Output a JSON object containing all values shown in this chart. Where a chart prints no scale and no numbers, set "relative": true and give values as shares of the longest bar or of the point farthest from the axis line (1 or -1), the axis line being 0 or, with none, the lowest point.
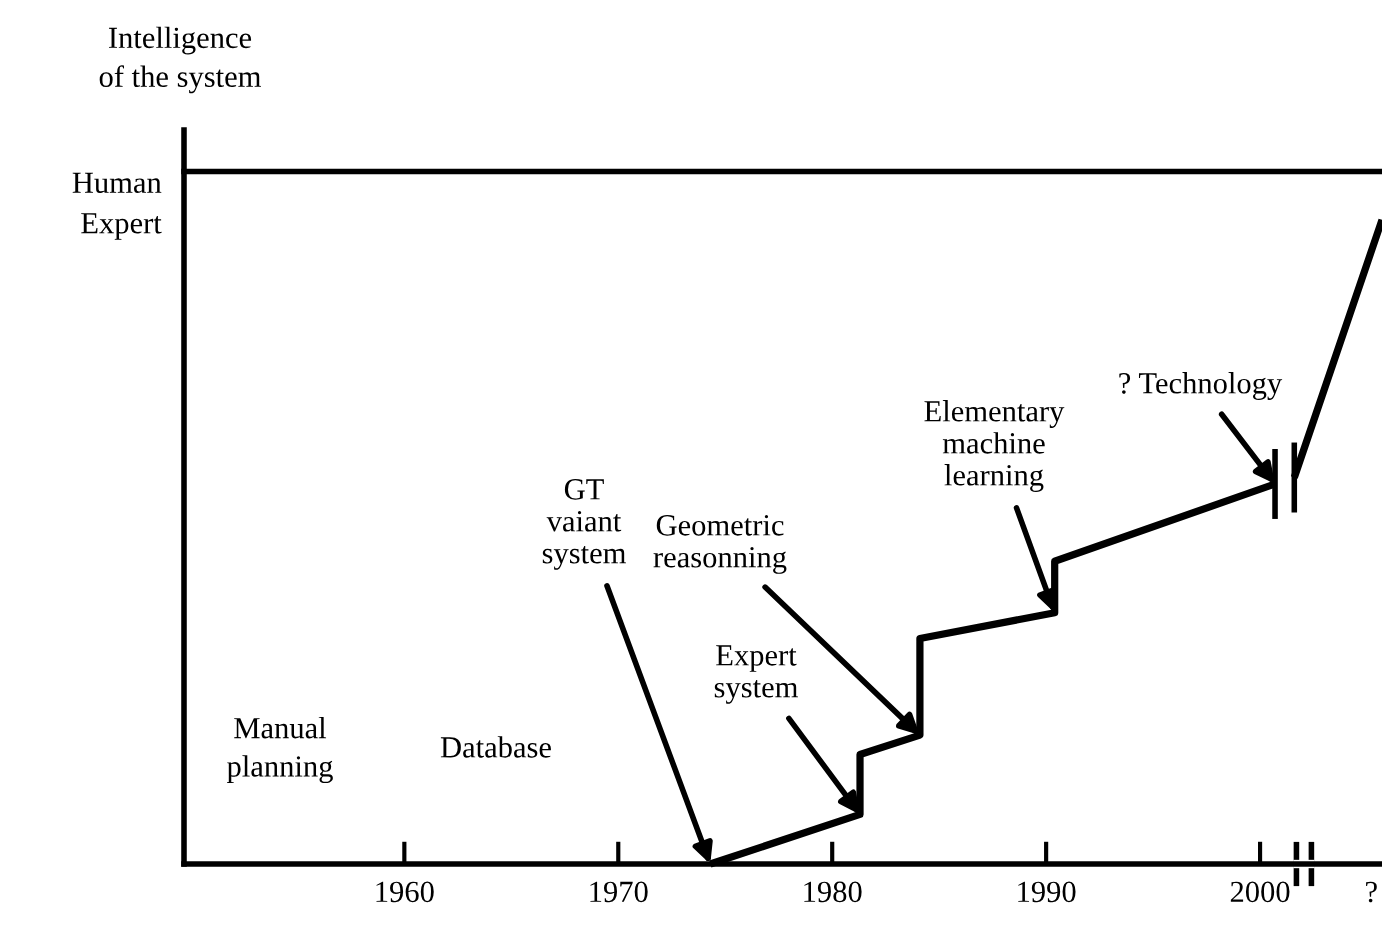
{
  "chart_data": {
    "type": "line",
    "relative": true,
    "ylabel": "Intelligence\nof the system",
    "xlim": [
      1949.7,
      2005.7
    ],
    "xticks": [
      1960,
      1970,
      1980,
      1990,
      2000,
      {
        "value": 2005.2,
        "label": "?"
      }
    ],
    "series": [
      {
        "color": "#000000",
        "x": [
          1974.3,
          1981.3,
          1981.3,
          1984.1,
          1984.1,
          1990.4,
          1990.4,
          2000.7,
          2001.2,
          2001.6,
          2005.7
        ],
        "values": [
          0,
          0.077,
          0.17,
          0.2,
          0.35,
          0.39,
          0.47,
          0.59,
          null,
          0.6,
          1
        ]
      }
    ],
    "ref_lines": [
      {
        "axis": "y",
        "value": 1.075,
        "label": "Human\nExpert",
        "color": "#000000",
        "line_style": "solid"
      }
    ],
    "annotations": [
      "Manual\nplanning",
      "Database",
      {
        "text": "GT\nvaiant\nsystem",
        "x": 1974.3,
        "y": 0
      },
      {
        "text": "Expert\nsystem",
        "x": 1981.3,
        "y": 0.077
      },
      {
        "text": "Geometric\nreasonning",
        "x": 1984.1,
        "y": 0.2
      },
      {
        "text": "Elementary\nmachine\nlearning",
        "x": 1990.4,
        "y": 0.39
      },
      {
        "text": "? Technology",
        "x": 2000.7,
        "y": 0.59
      }
    ],
    "grid": false,
    "legend": false,
    "marker": "none",
    "line_style": "solid"
  }
}
